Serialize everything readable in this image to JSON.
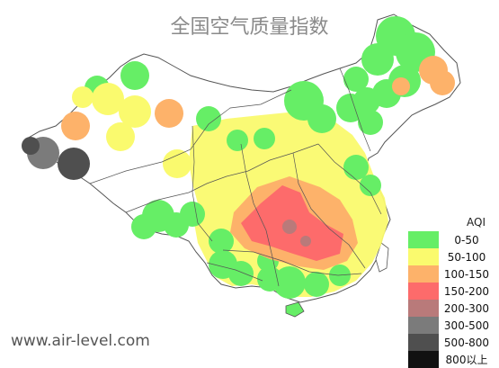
{
  "title": "全国空气质量指数",
  "website": "www.air-level.com",
  "legend": {
    "title": "AQI",
    "items": [
      {
        "label": "0-50",
        "color": "#66ee66"
      },
      {
        "label": "50-100",
        "color": "#fafa6e"
      },
      {
        "label": "100-150",
        "color": "#fdb26a"
      },
      {
        "label": "150-200",
        "color": "#fd6b6b"
      },
      {
        "label": "200-300",
        "color": "#b97a7a"
      },
      {
        "label": "300-500",
        "color": "#7b7b7b"
      },
      {
        "label": "500-800",
        "color": "#4f4f4f"
      },
      {
        "label": "800以上",
        "color": "#111111"
      }
    ]
  }
}
